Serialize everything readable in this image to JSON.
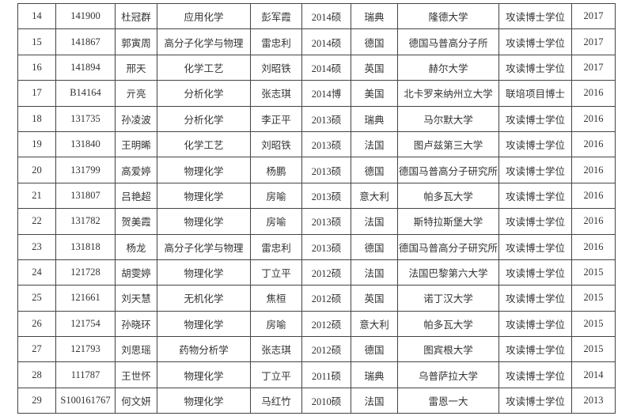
{
  "rows": [
    [
      "14",
      "141900",
      "杜冠群",
      "应用化学",
      "彭军霞",
      "2014硕",
      "瑞典",
      "隆德大学",
      "攻读博士学位",
      "2017"
    ],
    [
      "15",
      "141867",
      "郭寅周",
      "高分子化学与物理",
      "雷忠利",
      "2014硕",
      "德国",
      "德国马普高分子所",
      "攻读博士学位",
      "2017"
    ],
    [
      "16",
      "141894",
      "邢天",
      "化学工艺",
      "刘昭铁",
      "2014硕",
      "英国",
      "赫尔大学",
      "攻读博士学位",
      "2017"
    ],
    [
      "17",
      "B14164",
      "亓亮",
      "分析化学",
      "张志琪",
      "2014博",
      "美国",
      "北卡罗来纳州立大学",
      "联培项目博士",
      "2016"
    ],
    [
      "18",
      "131735",
      "孙凌波",
      "分析化学",
      "李正平",
      "2013硕",
      "瑞典",
      "马尔默大学",
      "攻读博士学位",
      "2016"
    ],
    [
      "19",
      "131840",
      "王明晞",
      "化学工艺",
      "刘昭铁",
      "2013硕",
      "法国",
      "图卢兹第三大学",
      "攻读博士学位",
      "2016"
    ],
    [
      "20",
      "131799",
      "高爱婷",
      "物理化学",
      "杨鹏",
      "2013硕",
      "德国",
      "德国马普高分子研究所",
      "攻读博士学位",
      "2016"
    ],
    [
      "21",
      "131807",
      "吕艳超",
      "物理化学",
      "房喻",
      "2013硕",
      "意大利",
      "帕多瓦大学",
      "攻读博士学位",
      "2016"
    ],
    [
      "22",
      "131782",
      "贺美霞",
      "物理化学",
      "房喻",
      "2013硕",
      "法国",
      "斯特拉斯堡大学",
      "攻读博士学位",
      "2016"
    ],
    [
      "23",
      "131818",
      "杨龙",
      "高分子化学与物理",
      "雷忠利",
      "2013硕",
      "德国",
      "德国马普高分子研究所",
      "攻读博士学位",
      "2016"
    ],
    [
      "24",
      "121728",
      "胡雯婷",
      "物理化学",
      "丁立平",
      "2012硕",
      "法国",
      "法国巴黎第六大学",
      "攻读博士学位",
      "2015"
    ],
    [
      "25",
      "121661",
      "刘天慧",
      "无机化学",
      "焦桓",
      "2012硕",
      "英国",
      "诺丁汉大学",
      "攻读博士学位",
      "2015"
    ],
    [
      "26",
      "121754",
      "孙晓环",
      "物理化学",
      "房喻",
      "2012硕",
      "意大利",
      "帕多瓦大学",
      "攻读博士学位",
      "2015"
    ],
    [
      "27",
      "121793",
      "刘思瑶",
      "药物分析学",
      "张志琪",
      "2012硕",
      "德国",
      "图宾根大学",
      "攻读博士学位",
      "2015"
    ],
    [
      "28",
      "111787",
      "王世怀",
      "物理化学",
      "丁立平",
      "2011硕",
      "瑞典",
      "乌普萨拉大学",
      "攻读博士学位",
      "2014"
    ],
    [
      "29",
      "S100161767",
      "何文妍",
      "物理化学",
      "马红竹",
      "2010硕",
      "法国",
      "雷恩一大",
      "攻读博士学位",
      "2013"
    ]
  ]
}
